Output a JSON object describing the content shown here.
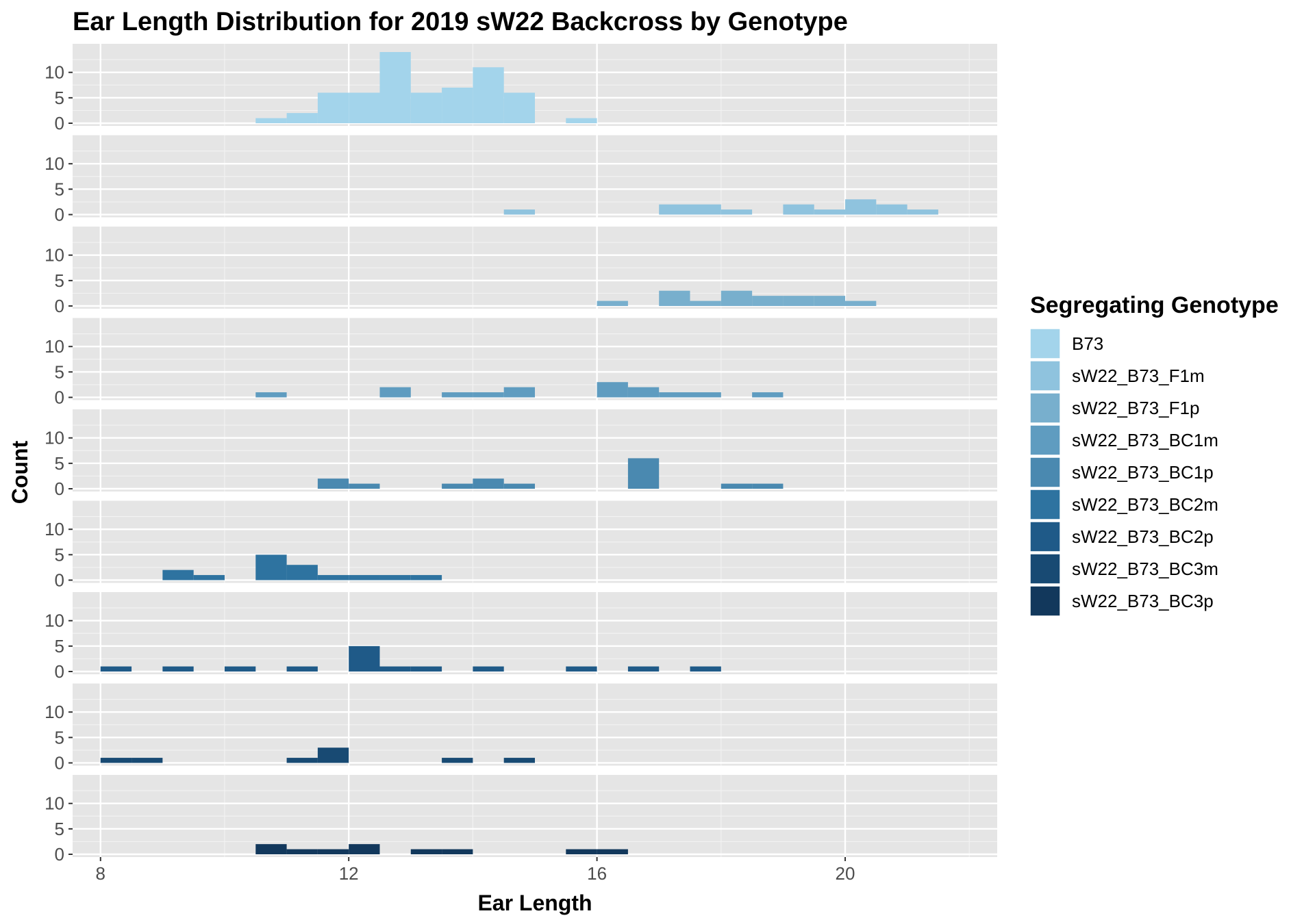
{
  "chart_data": {
    "type": "histogram",
    "title": "Ear Length Distribution for 2019 sW22 Backcross by Genotype",
    "xlabel": "Ear Length",
    "ylabel": "Count",
    "xlim": [
      7.55,
      22.45
    ],
    "ylim": [
      0,
      14
    ],
    "x_ticks": [
      8,
      12,
      16,
      20
    ],
    "y_ticks": [
      0,
      5,
      10
    ],
    "x_tick_labels": [
      "8",
      "12",
      "16",
      "20"
    ],
    "y_tick_labels": [
      "0",
      "5",
      "10"
    ],
    "bin_width": 0.5,
    "grid": true,
    "legend": {
      "title": "Segregating Genotype",
      "position": "right"
    },
    "series": [
      {
        "name": "B73",
        "color": "#a3d4eb",
        "bins": [
          [
            10.75,
            1
          ],
          [
            11.25,
            2
          ],
          [
            11.75,
            6
          ],
          [
            12.25,
            6
          ],
          [
            12.75,
            14
          ],
          [
            13.25,
            6
          ],
          [
            13.75,
            7
          ],
          [
            14.25,
            11
          ],
          [
            14.75,
            6
          ],
          [
            15.75,
            1
          ]
        ]
      },
      {
        "name": "sW22_B73_F1m",
        "color": "#8fc3de",
        "bins": [
          [
            14.75,
            1
          ],
          [
            17.25,
            2
          ],
          [
            17.75,
            2
          ],
          [
            18.25,
            1
          ],
          [
            19.25,
            2
          ],
          [
            19.75,
            1
          ],
          [
            20.25,
            3
          ],
          [
            20.75,
            2
          ],
          [
            21.25,
            1
          ]
        ]
      },
      {
        "name": "sW22_B73_F1p",
        "color": "#78afcd",
        "bins": [
          [
            16.25,
            1
          ],
          [
            17.25,
            3
          ],
          [
            17.75,
            1
          ],
          [
            18.25,
            3
          ],
          [
            18.75,
            2
          ],
          [
            19.25,
            2
          ],
          [
            19.75,
            2
          ],
          [
            20.25,
            1
          ]
        ]
      },
      {
        "name": "sW22_B73_BC1m",
        "color": "#5f9cc0",
        "bins": [
          [
            10.75,
            1
          ],
          [
            12.75,
            2
          ],
          [
            13.75,
            1
          ],
          [
            14.25,
            1
          ],
          [
            14.75,
            2
          ],
          [
            16.25,
            3
          ],
          [
            16.75,
            2
          ],
          [
            17.25,
            1
          ],
          [
            17.75,
            1
          ],
          [
            18.75,
            1
          ]
        ]
      },
      {
        "name": "sW22_B73_BC1p",
        "color": "#4a89b0",
        "bins": [
          [
            11.75,
            2
          ],
          [
            12.25,
            1
          ],
          [
            13.75,
            1
          ],
          [
            14.25,
            2
          ],
          [
            14.75,
            1
          ],
          [
            16.75,
            6
          ],
          [
            18.25,
            1
          ],
          [
            18.75,
            1
          ]
        ]
      },
      {
        "name": "sW22_B73_BC2m",
        "color": "#2e73a0",
        "bins": [
          [
            9.25,
            2
          ],
          [
            9.75,
            1
          ],
          [
            10.75,
            5
          ],
          [
            11.25,
            3
          ],
          [
            11.75,
            1
          ],
          [
            12.25,
            1
          ],
          [
            12.75,
            1
          ],
          [
            13.25,
            1
          ]
        ]
      },
      {
        "name": "sW22_B73_BC2p",
        "color": "#1f5a88",
        "bins": [
          [
            8.25,
            1
          ],
          [
            9.25,
            1
          ],
          [
            10.25,
            1
          ],
          [
            11.25,
            1
          ],
          [
            12.25,
            5
          ],
          [
            12.75,
            1
          ],
          [
            13.25,
            1
          ],
          [
            14.25,
            1
          ],
          [
            15.75,
            1
          ],
          [
            16.75,
            1
          ],
          [
            17.75,
            1
          ]
        ]
      },
      {
        "name": "sW22_B73_BC3m",
        "color": "#184a73",
        "bins": [
          [
            8.25,
            1
          ],
          [
            8.75,
            1
          ],
          [
            11.25,
            1
          ],
          [
            11.75,
            3
          ],
          [
            13.75,
            1
          ],
          [
            14.75,
            1
          ]
        ]
      },
      {
        "name": "sW22_B73_BC3p",
        "color": "#12385c",
        "bins": [
          [
            10.75,
            2
          ],
          [
            11.25,
            1
          ],
          [
            11.75,
            1
          ],
          [
            12.25,
            2
          ],
          [
            13.25,
            1
          ],
          [
            13.75,
            1
          ],
          [
            15.75,
            1
          ],
          [
            16.25,
            1
          ]
        ]
      }
    ]
  }
}
